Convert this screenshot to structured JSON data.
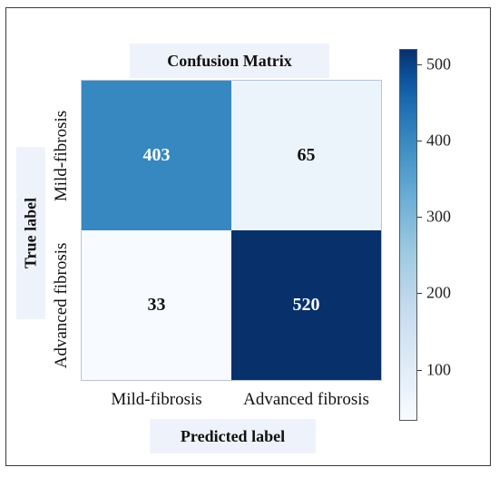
{
  "chart_data": {
    "type": "heatmap",
    "title": "Confusion Matrix",
    "xlabel": "Predicted label",
    "ylabel": "True label",
    "x_categories": [
      "Mild-fibrosis",
      "Advanced fibrosis"
    ],
    "y_categories": [
      "Mild-fibrosis",
      "Advanced fibrosis"
    ],
    "values": [
      [
        403,
        65
      ],
      [
        33,
        520
      ]
    ],
    "colormap": "Blues",
    "colorbar": {
      "min": 33,
      "max": 520,
      "ticks": [
        100,
        200,
        300,
        400,
        500
      ]
    },
    "grid": false
  },
  "colors": {
    "cell_low": "#f5f9fe",
    "cell_high": "#083471",
    "text_dark": "#111111",
    "text_light": "#ffffff",
    "label_panel": "#eef3fb"
  }
}
